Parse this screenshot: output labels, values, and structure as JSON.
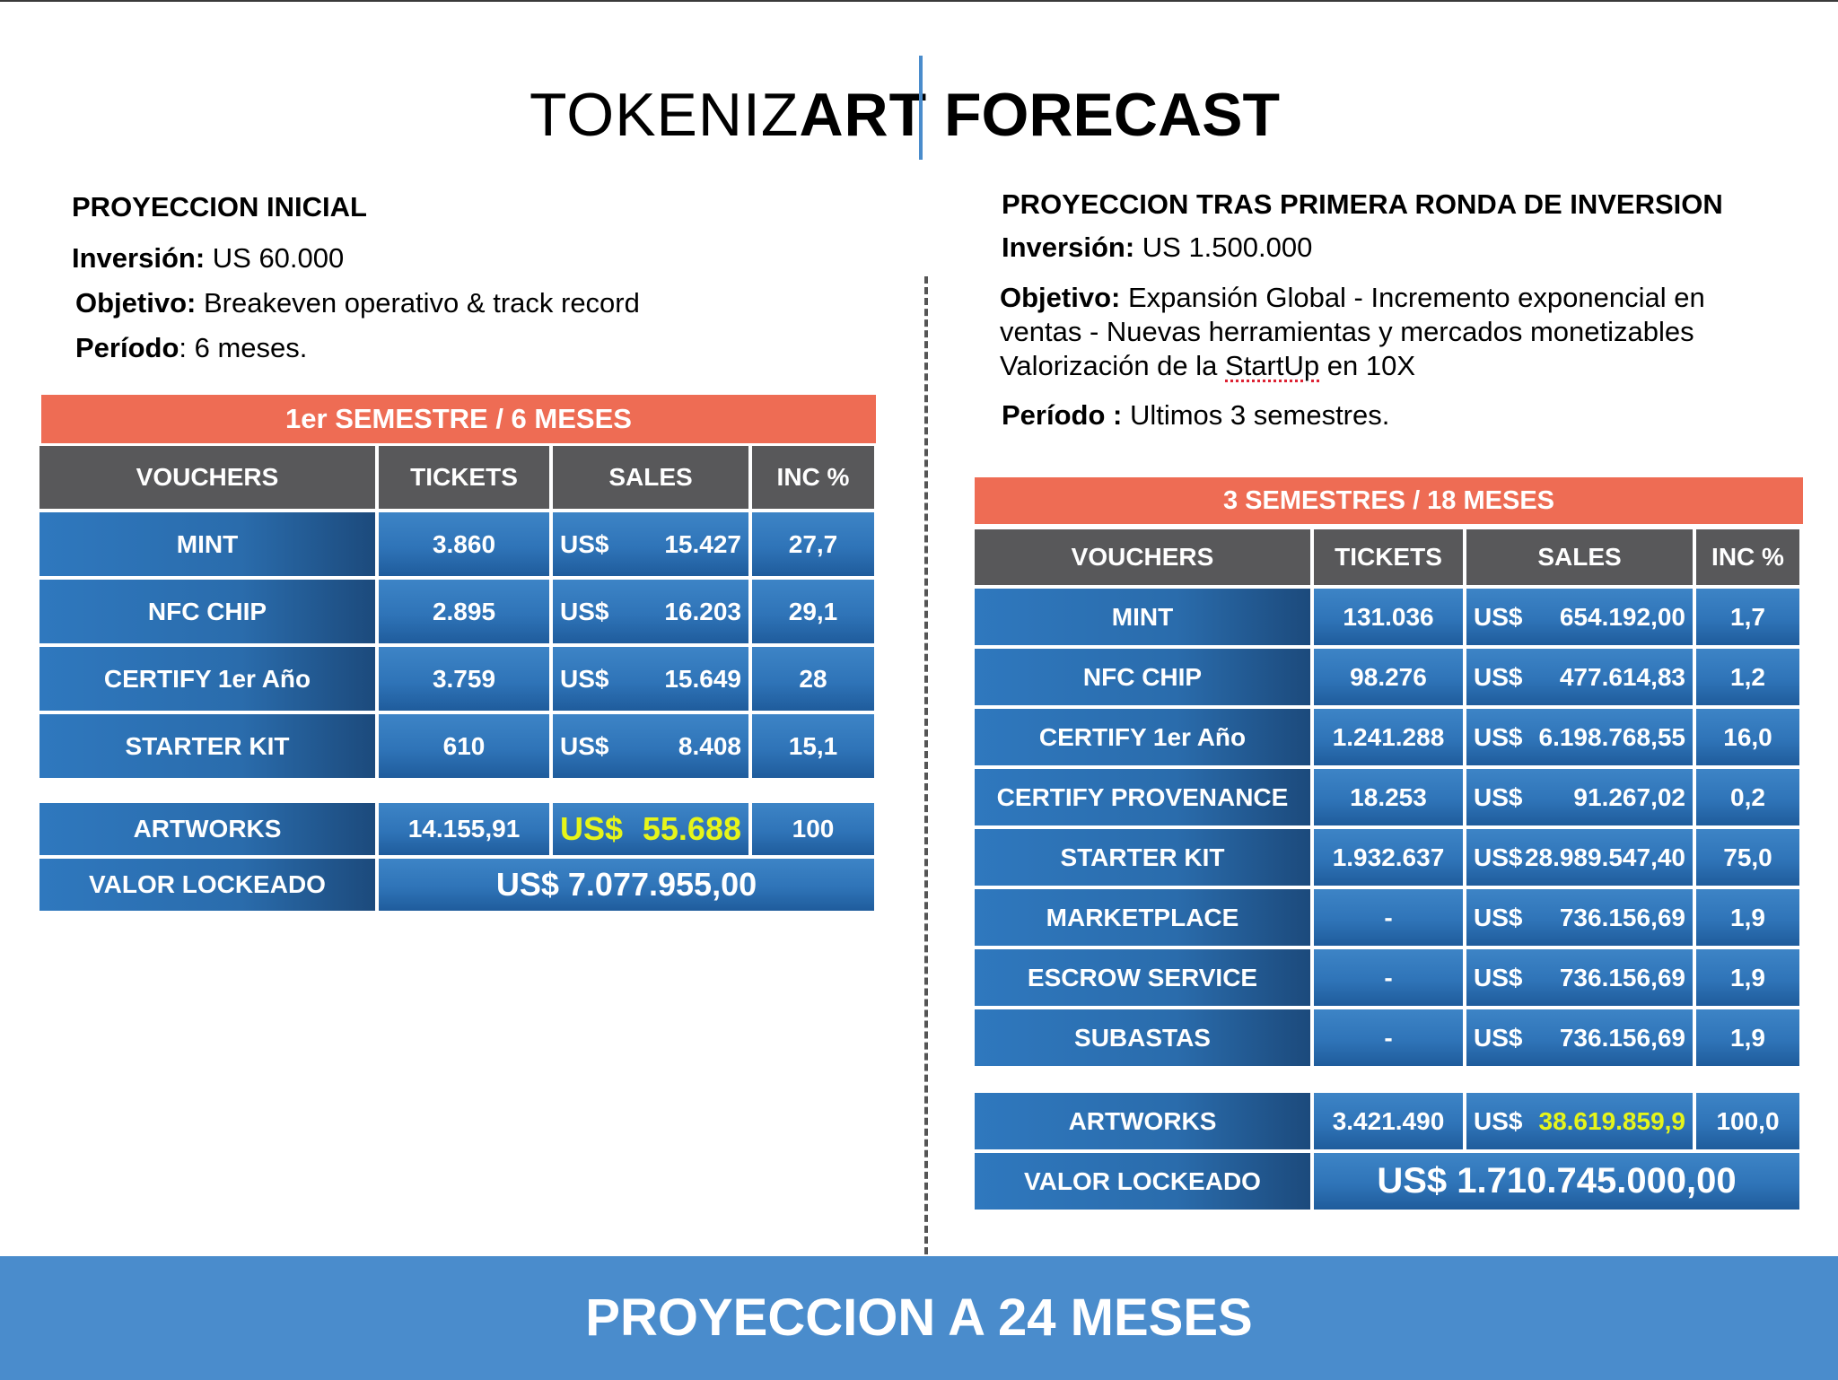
{
  "header": {
    "brand_light": "TOKENIZ",
    "brand_bold": "ART",
    "title": "FORECAST"
  },
  "left": {
    "heading": "PROYECCION INICIAL",
    "inversion_label": "Inversión:",
    "inversion_value": " US 60.000",
    "objetivo_label": "Objetivo:",
    "objetivo_value": " Breakeven operativo & track record",
    "periodo_label": "Período",
    "periodo_value": ": 6 meses.",
    "table": {
      "title": "1er SEMESTRE / 6 MESES",
      "columns": [
        "VOUCHERS",
        "TICKETS",
        "SALES",
        "INC %"
      ],
      "rows": [
        {
          "voucher": "MINT",
          "tickets": "3.860",
          "currency": "US$",
          "sales": "15.427",
          "inc": "27,7"
        },
        {
          "voucher": "NFC CHIP",
          "tickets": "2.895",
          "currency": "US$",
          "sales": "16.203",
          "inc": "29,1"
        },
        {
          "voucher": "CERTIFY 1er Año",
          "tickets": "3.759",
          "currency": "US$",
          "sales": "15.649",
          "inc": "28"
        },
        {
          "voucher": "STARTER KIT",
          "tickets": "610",
          "currency": "US$",
          "sales": "8.408",
          "inc": "15,1"
        }
      ],
      "artworks": {
        "label": "ARTWORKS",
        "tickets": "14.155,91",
        "currency": "US$",
        "sales": "55.688",
        "inc": "100"
      },
      "valor": {
        "label": "VALOR LOCKEADO",
        "value": "US$ 7.077.955,00"
      }
    }
  },
  "right": {
    "heading": "PROYECCION TRAS PRIMERA RONDA DE INVERSION",
    "inversion_label": "Inversión:",
    "inversion_value": " US 1.500.000",
    "objetivo_label": "Objetivo:",
    "objetivo_line1": " Expansión Global - Incremento exponencial en",
    "objetivo_line2": "ventas - Nuevas herramientas y mercados monetizables",
    "objetivo_line3_pre": "Valorización de la ",
    "objetivo_line3_word": "StartUp",
    "objetivo_line3_post": " en 10X",
    "periodo_label": "Período :",
    "periodo_value": " Ultimos 3 semestres.",
    "table": {
      "title": "3 SEMESTRES / 18 MESES",
      "columns": [
        "VOUCHERS",
        "TICKETS",
        "SALES",
        "INC %"
      ],
      "rows": [
        {
          "voucher": "MINT",
          "tickets": "131.036",
          "currency": "US$",
          "sales": "654.192,00",
          "inc": "1,7"
        },
        {
          "voucher": "NFC CHIP",
          "tickets": "98.276",
          "currency": "US$",
          "sales": "477.614,83",
          "inc": "1,2"
        },
        {
          "voucher": "CERTIFY 1er Año",
          "tickets": "1.241.288",
          "currency": "US$",
          "sales": "6.198.768,55",
          "inc": "16,0"
        },
        {
          "voucher": "CERTIFY PROVENANCE",
          "tickets": "18.253",
          "currency": "US$",
          "sales": "91.267,02",
          "inc": "0,2"
        },
        {
          "voucher": "STARTER KIT",
          "tickets": "1.932.637",
          "currency": "US$",
          "sales": "28.989.547,40",
          "inc": "75,0"
        },
        {
          "voucher": "MARKETPLACE",
          "tickets": "-",
          "currency": "US$",
          "sales": "736.156,69",
          "inc": "1,9"
        },
        {
          "voucher": "ESCROW SERVICE",
          "tickets": "-",
          "currency": "US$",
          "sales": "736.156,69",
          "inc": "1,9"
        },
        {
          "voucher": "SUBASTAS",
          "tickets": "-",
          "currency": "US$",
          "sales": "736.156,69",
          "inc": "1,9"
        }
      ],
      "artworks": {
        "label": "ARTWORKS",
        "tickets": "3.421.490",
        "currency": "US$",
        "sales": "38.619.859,9",
        "inc": "100,0"
      },
      "valor": {
        "label": "VALOR LOCKEADO",
        "value": "US$ 1.710.745.000,00"
      }
    }
  },
  "footer": {
    "text": "PROYECCION A 24 MESES"
  },
  "colors": {
    "accent_orange": "#ee6c54",
    "header_gray": "#58585a",
    "cell_blue": "#2f74b8",
    "highlight_yellow": "#e6f51a",
    "footer_blue": "#4a8ccc"
  }
}
